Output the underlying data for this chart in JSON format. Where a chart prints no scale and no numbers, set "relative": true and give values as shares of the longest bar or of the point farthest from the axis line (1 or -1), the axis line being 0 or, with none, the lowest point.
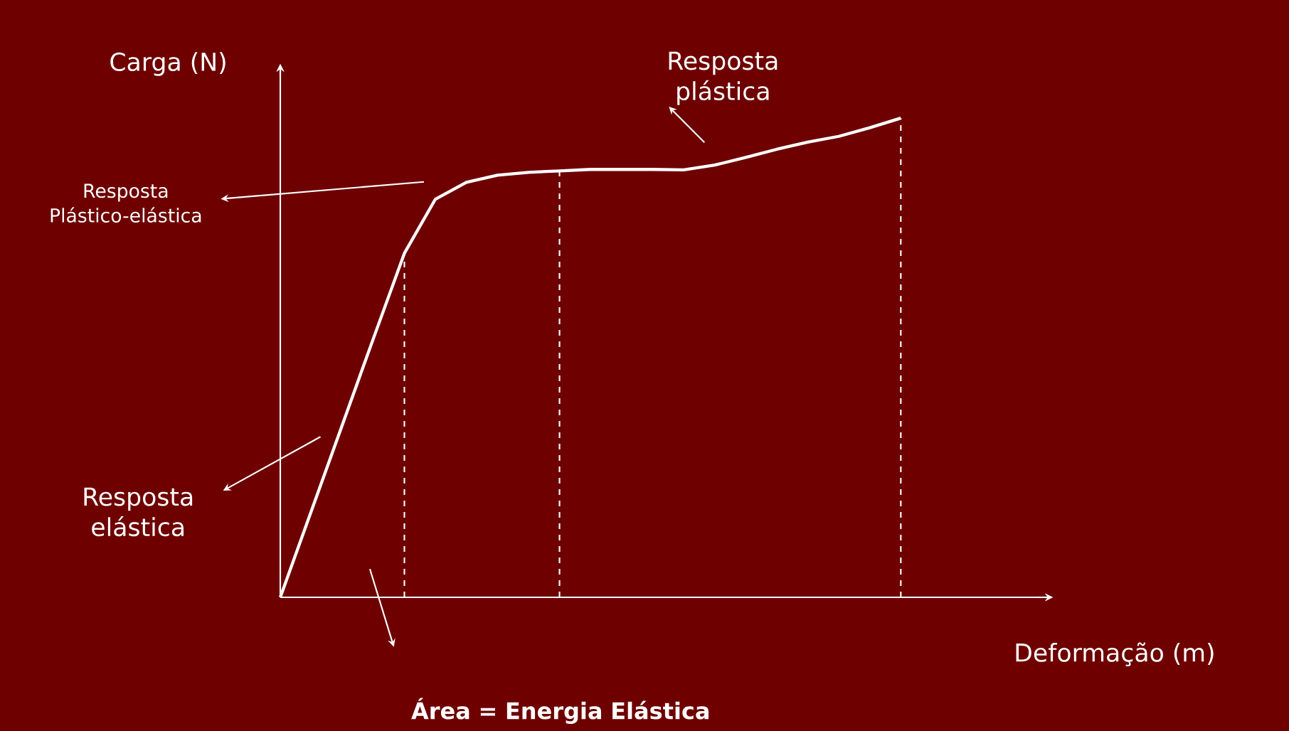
{
  "chart_data": {
    "type": "line",
    "relative": true,
    "xlabel": "Deformação (m)",
    "ylabel": "Carga (N)",
    "categories": [
      null,
      null,
      null,
      null,
      null,
      null,
      null,
      null,
      null,
      null,
      null,
      null,
      null,
      null,
      null,
      null,
      null,
      null,
      null,
      null,
      null
    ],
    "series": [
      {
        "color": "#ffffff",
        "values": [
          0,
          0.18,
          0.36,
          0.54,
          0.718,
          0.831,
          0.866,
          0.881,
          0.887,
          0.89,
          0.893,
          0.893,
          0.893,
          0.892,
          0.902,
          0.918,
          0.935,
          0.95,
          0.962,
          0.98,
          1
        ]
      }
    ],
    "annotations": [
      "Resposta plástica",
      "Resposta Plástico-elástica",
      "Resposta elástica",
      "**Área = Energia Elástica**"
    ],
    "grid": "x",
    "marker": "none",
    "line_style": "solid"
  }
}
